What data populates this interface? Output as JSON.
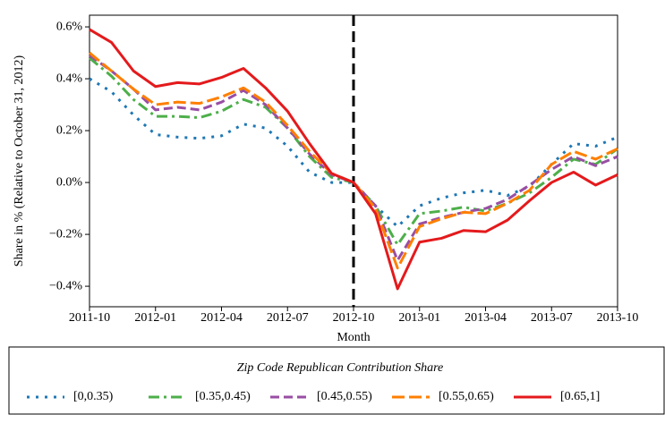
{
  "chart_data": {
    "type": "line",
    "x_label": "Month",
    "y_label": "Share in % (Relative to October 31, 2012)",
    "legend_title": "Zip Code Republican Contribution Share",
    "categories": [
      "2011-10",
      null,
      null,
      "2012-01",
      null,
      null,
      "2012-04",
      null,
      null,
      "2012-07",
      null,
      null,
      "2012-10",
      null,
      null,
      "2013-01",
      null,
      null,
      "2013-04",
      null,
      null,
      "2013-07",
      null,
      null,
      "2013-10"
    ],
    "event_line": "2012-10",
    "ylim": [
      -0.479,
      0.645
    ],
    "yticks": [
      {
        "value": -0.4,
        "label": "−0.4%"
      },
      {
        "value": -0.2,
        "label": "−0.2%"
      },
      {
        "value": 0.0,
        "label": "0.0%"
      },
      {
        "value": 0.2,
        "label": "0.2%"
      },
      {
        "value": 0.4,
        "label": "0.4%"
      },
      {
        "value": 0.6,
        "label": "0.6%"
      }
    ],
    "grid": false,
    "series": [
      {
        "name": "[0,0.35)",
        "color": "#1f77b4",
        "linestyle": "dotted",
        "values": [
          0.4,
          0.35,
          0.26,
          0.185,
          0.175,
          0.17,
          0.18,
          0.225,
          0.21,
          0.14,
          0.04,
          0.0,
          0.0,
          -0.09,
          -0.17,
          -0.09,
          -0.06,
          -0.04,
          -0.03,
          -0.05,
          -0.015,
          0.07,
          0.15,
          0.14,
          0.175
        ]
      },
      {
        "name": "[0.35,0.45)",
        "color": "#4daf4a",
        "linestyle": "dashdot",
        "values": [
          0.48,
          0.41,
          0.32,
          0.255,
          0.255,
          0.25,
          0.275,
          0.32,
          0.29,
          0.21,
          0.1,
          0.02,
          0.0,
          -0.09,
          -0.24,
          -0.12,
          -0.11,
          -0.095,
          -0.11,
          -0.08,
          -0.04,
          0.02,
          0.09,
          0.07,
          0.13
        ]
      },
      {
        "name": "[0.45,0.55)",
        "color": "#984ea3",
        "linestyle": "dashed",
        "values": [
          0.49,
          0.43,
          0.36,
          0.28,
          0.29,
          0.28,
          0.31,
          0.355,
          0.3,
          0.21,
          0.11,
          0.03,
          0.0,
          -0.09,
          -0.3,
          -0.16,
          -0.135,
          -0.115,
          -0.1,
          -0.065,
          -0.01,
          0.05,
          0.1,
          0.065,
          0.1
        ]
      },
      {
        "name": "[0.55,0.65)",
        "color": "#ff7f00",
        "linestyle": "longdash",
        "values": [
          0.5,
          0.43,
          0.36,
          0.3,
          0.31,
          0.305,
          0.33,
          0.365,
          0.31,
          0.22,
          0.12,
          0.035,
          0.0,
          -0.1,
          -0.33,
          -0.17,
          -0.14,
          -0.115,
          -0.12,
          -0.08,
          -0.03,
          0.07,
          0.12,
          0.09,
          0.13
        ]
      },
      {
        "name": "[0.65,1]",
        "color": "#e41a1c",
        "linestyle": "solid",
        "values": [
          0.59,
          0.54,
          0.43,
          0.37,
          0.385,
          0.38,
          0.405,
          0.44,
          0.365,
          0.275,
          0.15,
          0.035,
          0.0,
          -0.12,
          -0.41,
          -0.23,
          -0.215,
          -0.185,
          -0.19,
          -0.145,
          -0.07,
          0.0,
          0.04,
          -0.01,
          0.03
        ]
      }
    ]
  }
}
